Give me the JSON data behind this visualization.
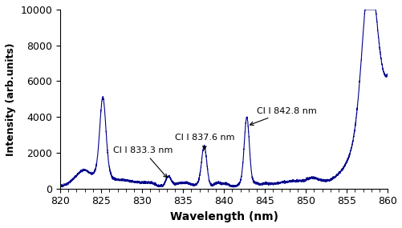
{
  "title": "",
  "xlabel": "Wavelength (nm)",
  "ylabel": "Intensity (arb.units)",
  "xlim": [
    820,
    860
  ],
  "ylim": [
    0,
    10000
  ],
  "xticks": [
    820,
    825,
    830,
    835,
    840,
    845,
    850,
    855,
    860
  ],
  "yticks": [
    0,
    2000,
    4000,
    6000,
    8000,
    10000
  ],
  "line_color": "#00008B",
  "bg_color": "#ffffff"
}
